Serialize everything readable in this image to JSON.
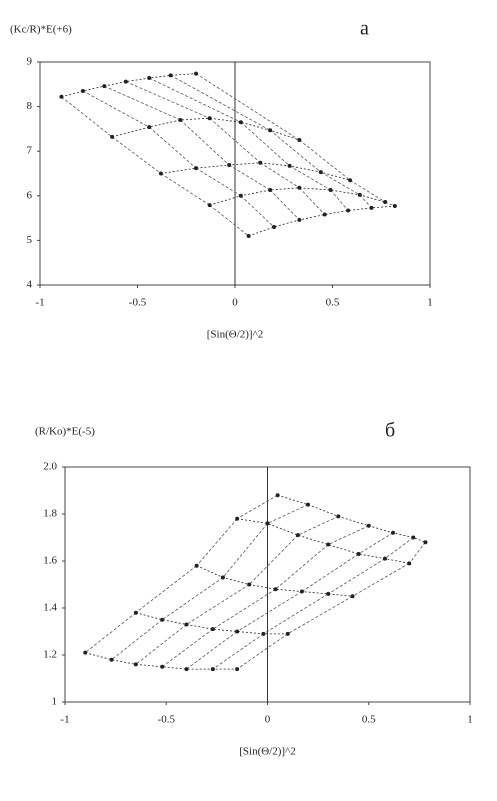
{
  "chart_data": [
    {
      "type": "zimm",
      "title": "a",
      "y_label": "(Kc/R)*E(+6)",
      "x_label": "[Sin(Θ/2)]^2",
      "xlim": [
        -1,
        1
      ],
      "ylim": [
        4,
        9
      ],
      "xticks": [
        -1,
        -0.5,
        0,
        0.5,
        1
      ],
      "yticks": [
        4,
        5,
        6,
        7,
        8,
        9
      ],
      "series": [
        {
          "color": "#222",
          "x": [
            -0.89,
            -0.78,
            -0.67,
            -0.56,
            -0.44,
            -0.33,
            -0.2
          ],
          "values": [
            8.22,
            8.35,
            8.46,
            8.56,
            8.64,
            8.7,
            8.74
          ]
        },
        {
          "color": "#222",
          "x": [
            -0.63,
            -0.44,
            -0.28,
            -0.13,
            0.03,
            0.18,
            0.33
          ],
          "values": [
            7.32,
            7.54,
            7.7,
            7.74,
            7.65,
            7.47,
            7.25
          ]
        },
        {
          "color": "#222",
          "x": [
            -0.38,
            -0.2,
            -0.03,
            0.13,
            0.28,
            0.44,
            0.59
          ],
          "values": [
            6.5,
            6.62,
            6.69,
            6.74,
            6.67,
            6.53,
            6.35
          ]
        },
        {
          "color": "#222",
          "x": [
            -0.13,
            0.03,
            0.18,
            0.33,
            0.49,
            0.64,
            0.77
          ],
          "values": [
            5.79,
            6.0,
            6.13,
            6.18,
            6.13,
            6.02,
            5.86
          ]
        },
        {
          "color": "#222",
          "x": [
            0.07,
            0.2,
            0.33,
            0.46,
            0.58,
            0.7,
            0.82
          ],
          "values": [
            5.1,
            5.3,
            5.46,
            5.58,
            5.67,
            5.73,
            5.77
          ]
        }
      ]
    },
    {
      "type": "zimm",
      "title": "б",
      "y_label": "(R/Ko)*E(-5)",
      "x_label": "[Sin(Θ/2)]^2",
      "xlim": [
        -1,
        1
      ],
      "ylim": [
        1,
        2
      ],
      "xticks": [
        -1,
        -0.5,
        0,
        0.5,
        1
      ],
      "yticks": [
        1,
        1.2,
        1.4,
        1.6,
        1.8,
        {
          "value": 2,
          "label": "2.0"
        }
      ],
      "series": [
        {
          "color": "#222",
          "x": [
            0.05,
            0.2,
            0.35,
            0.5,
            0.62,
            0.72,
            0.78
          ],
          "values": [
            1.88,
            1.84,
            1.79,
            1.75,
            1.72,
            1.7,
            1.68
          ]
        },
        {
          "color": "#222",
          "x": [
            -0.15,
            0.0,
            0.15,
            0.3,
            0.45,
            0.58,
            0.7
          ],
          "values": [
            1.78,
            1.76,
            1.71,
            1.67,
            1.63,
            1.61,
            1.59
          ]
        },
        {
          "color": "#222",
          "x": [
            -0.35,
            -0.22,
            -0.09,
            0.04,
            0.17,
            0.3,
            0.42
          ],
          "values": [
            1.58,
            1.53,
            1.5,
            1.48,
            1.47,
            1.46,
            1.45
          ]
        },
        {
          "color": "#222",
          "x": [
            -0.65,
            -0.52,
            -0.4,
            -0.27,
            -0.15,
            -0.02,
            0.1
          ],
          "values": [
            1.38,
            1.35,
            1.33,
            1.31,
            1.3,
            1.29,
            1.29
          ]
        },
        {
          "color": "#222",
          "x": [
            -0.9,
            -0.77,
            -0.65,
            -0.52,
            -0.4,
            -0.27,
            -0.15
          ],
          "values": [
            1.21,
            1.18,
            1.16,
            1.15,
            1.14,
            1.14,
            1.14
          ]
        }
      ]
    }
  ]
}
